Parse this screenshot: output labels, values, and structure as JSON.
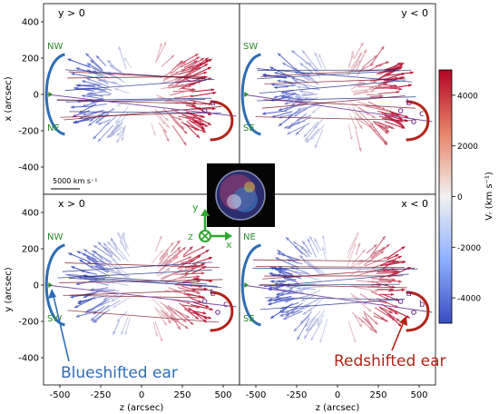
{
  "chart_data": {
    "type": "scatter",
    "panels": [
      {
        "label": "y > 0",
        "xlabel": "",
        "ylabel": "x (arcsec)",
        "left_tag": "NW",
        "left_tag_bottom": "NE",
        "right_tag": "",
        "right_tag_bottom": "",
        "markers": [
          "a"
        ],
        "marker_text": "5000 km s⁻¹"
      },
      {
        "label": "y < 0",
        "xlabel": "",
        "ylabel": "",
        "left_tag": "SW",
        "left_tag_bottom": "SE",
        "right_tag": "",
        "right_tag_bottom": "",
        "markers": [
          "b",
          "c"
        ]
      },
      {
        "label": "x > 0",
        "xlabel": "z (arcsec)",
        "ylabel": "y (arcsec)",
        "left_tag": "NW",
        "left_tag_bottom": "SW",
        "right_tag": "",
        "right_tag_bottom": "",
        "markers": [
          "b",
          "c"
        ]
      },
      {
        "label": "x < 0",
        "xlabel": "z (arcsec)",
        "ylabel": "",
        "left_tag": "NE",
        "left_tag_bottom": "SE",
        "right_tag": "",
        "right_tag_bottom": "",
        "markers": [
          "a",
          "b"
        ]
      }
    ],
    "xticks": [
      -500,
      -250,
      0,
      250,
      500
    ],
    "yticks": [
      400,
      200,
      0,
      -200,
      -400
    ],
    "xlim": [
      -600,
      600
    ],
    "ylim": [
      -550,
      500
    ],
    "colorbar": {
      "label": "Vᵣ (km s⁻¹)",
      "ticks": [
        4000,
        2000,
        0,
        -2000,
        -4000
      ],
      "range": [
        -5000,
        5000
      ],
      "colors": [
        "#3a4cc0",
        "#f2f2f2",
        "#b40426"
      ]
    },
    "annotations": [
      "Blueshifted ear",
      "Redshifted ear"
    ],
    "axis_triad": [
      "y",
      "z",
      "x"
    ]
  },
  "colors": {
    "blue_ear": "#2f6db5",
    "red_ear": "#b22418",
    "tag_green": "#2a8a2a",
    "triad_green": "#2ea82e"
  }
}
